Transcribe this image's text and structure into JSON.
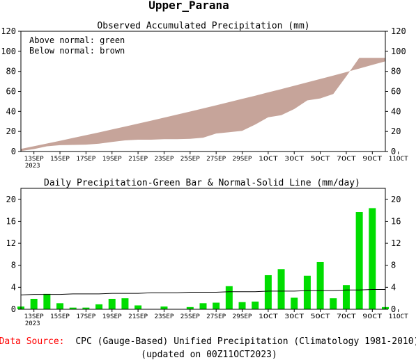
{
  "page_title": "Upper_Parana",
  "chart_data": [
    {
      "type": "area",
      "title": "Observed Accumulated Precipitation (mm)",
      "legend": [
        "Above normal: green",
        "Below normal: brown"
      ],
      "ylim": [
        0,
        120
      ],
      "yticks": [
        0,
        20,
        40,
        60,
        80,
        100,
        120
      ],
      "xlim": [
        0,
        28
      ],
      "xticks": [
        {
          "pos": 1,
          "label": "13SEP",
          "sub": "2023"
        },
        {
          "pos": 3,
          "label": "15SEP"
        },
        {
          "pos": 5,
          "label": "17SEP"
        },
        {
          "pos": 7,
          "label": "19SEP"
        },
        {
          "pos": 9,
          "label": "21SEP"
        },
        {
          "pos": 11,
          "label": "23SEP"
        },
        {
          "pos": 13,
          "label": "25SEP"
        },
        {
          "pos": 15,
          "label": "27SEP"
        },
        {
          "pos": 17,
          "label": "29SEP"
        },
        {
          "pos": 19,
          "label": "1OCT"
        },
        {
          "pos": 21,
          "label": "3OCT"
        },
        {
          "pos": 23,
          "label": "5OCT"
        },
        {
          "pos": 25,
          "label": "7OCT"
        },
        {
          "pos": 27,
          "label": "9OCT"
        },
        {
          "pos": 29,
          "label": "11OCT"
        }
      ],
      "series": [
        {
          "values": [
            0.5,
            2.4,
            5.2,
            6.3,
            6.6,
            6.9,
            7.8,
            9.5,
            11.1,
            11.8,
            11.8,
            12.3,
            12.3,
            12.7,
            13.8,
            18.0,
            19.3,
            20.7,
            26.9,
            34.2,
            36.3,
            42.4,
            51.0,
            53.0,
            57.4,
            75.1,
            93.5,
            93.5,
            93.5
          ]
        },
        {
          "values": [
            2.6,
            5.3,
            8.0,
            10.7,
            13.5,
            16.3,
            19.1,
            22.0,
            24.9,
            27.8,
            30.8,
            33.8,
            36.8,
            39.9,
            43.0,
            46.1,
            49.3,
            52.5,
            55.7,
            59.0,
            62.3,
            65.6,
            69.0,
            72.4,
            75.8,
            79.3,
            82.8,
            86.4,
            90.0
          ]
        }
      ],
      "colors": {
        "below": "#c6a49a",
        "above": "#00dd00"
      }
    },
    {
      "type": "bar",
      "title": "Daily Precipitation-Green Bar & Normal-Solid Line (mm/day)",
      "ylim": [
        0,
        22
      ],
      "yticks": [
        0,
        4,
        8,
        12,
        16,
        20
      ],
      "xlim": [
        0,
        28
      ],
      "series": [
        {
          "values": [
            0.5,
            1.9,
            2.8,
            1.1,
            0.3,
            0.3,
            0.9,
            1.9,
            2.0,
            0.7,
            0.0,
            0.5,
            0.0,
            0.4,
            1.1,
            1.2,
            4.2,
            1.3,
            1.4,
            6.2,
            7.3,
            2.1,
            6.1,
            8.6,
            2.0,
            4.4,
            17.7,
            18.4,
            0.4
          ]
        },
        {
          "values": [
            2.6,
            2.7,
            2.7,
            2.7,
            2.8,
            2.8,
            2.8,
            2.9,
            2.9,
            2.9,
            3.0,
            3.0,
            3.0,
            3.1,
            3.1,
            3.1,
            3.2,
            3.2,
            3.2,
            3.3,
            3.3,
            3.3,
            3.4,
            3.4,
            3.4,
            3.5,
            3.5,
            3.6,
            3.6
          ]
        }
      ],
      "colors": {
        "bar": "#00dd00",
        "line": "#000000"
      }
    }
  ],
  "footer": {
    "source_label": "Data Source:",
    "source_text": "CPC (Gauge-Based) Unified Precipitation (Climatology 1981-2010)",
    "updated": "(updated on 00Z11OCT2023)",
    "source_color": "#ff0000"
  }
}
